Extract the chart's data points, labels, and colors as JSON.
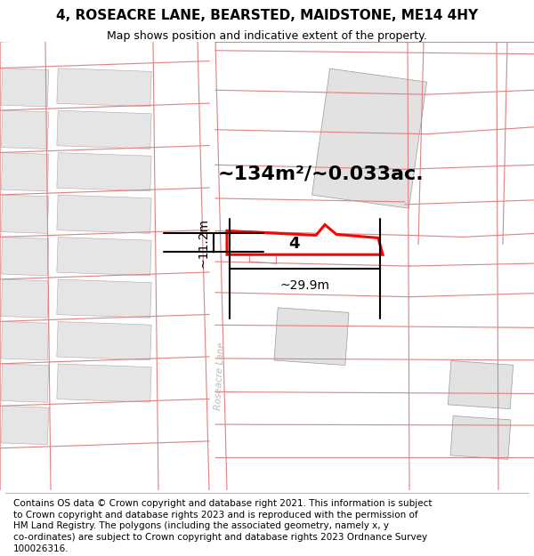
{
  "title": "4, ROSEACRE LANE, BEARSTED, MAIDSTONE, ME14 4HY",
  "subtitle": "Map shows position and indicative extent of the property.",
  "area_text": "~134m²/~0.033ac.",
  "width_label": "~29.9m",
  "height_label": "~11.2m",
  "number_label": "4",
  "bg_color": "#ffffff",
  "map_bg": "#ffffff",
  "building_color": "#e8e8e8",
  "building_edge": "#aaaaaa",
  "plot_outline_color": "#ff0000",
  "boundary_color": "#e09090",
  "road_label_color": "#aaaaaa",
  "title_fontsize": 11,
  "subtitle_fontsize": 9,
  "area_fontsize": 16,
  "label_fontsize": 10,
  "footer_fontsize": 7.5,
  "footer_lines": [
    "Contains OS data © Crown copyright and database right 2021. This information is subject",
    "to Crown copyright and database rights 2023 and is reproduced with the permission of",
    "HM Land Registry. The polygons (including the associated geometry, namely x, y",
    "co-ordinates) are subject to Crown copyright and database rights 2023 Ordnance Survey",
    "100026316."
  ]
}
